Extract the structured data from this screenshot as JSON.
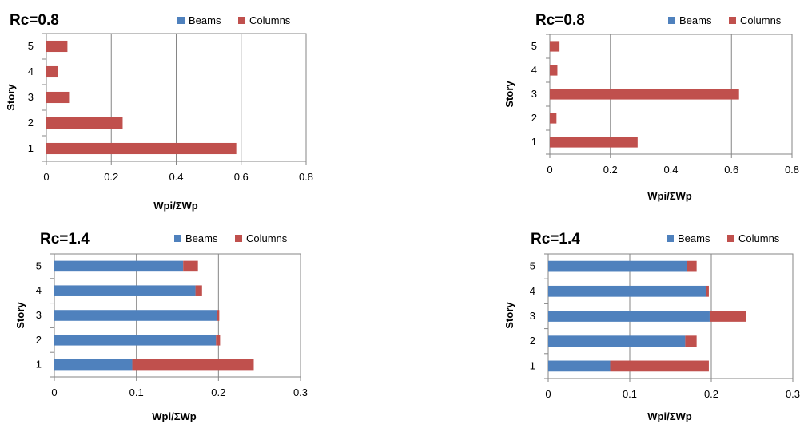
{
  "colors": {
    "beams": "#4f81bd",
    "columns": "#c0504d",
    "grid": "#868686",
    "axis": "#868686"
  },
  "chart_data": [
    {
      "type": "bar",
      "orientation": "horizontal",
      "stacked": true,
      "title": "Rc=0.8",
      "xlabel": "Wpi/ΣWp",
      "ylabel": "Story",
      "categories": [
        "1",
        "2",
        "3",
        "4",
        "5"
      ],
      "xlim": [
        0,
        0.8
      ],
      "xticks": [
        0,
        0.2,
        0.4,
        0.6,
        0.8
      ],
      "xtick_labels": [
        "0",
        "0.2",
        "0.4",
        "0.6",
        "0.8"
      ],
      "grid": true,
      "legend": "top",
      "series": [
        {
          "name": "Beams",
          "values": [
            0,
            0,
            0,
            0,
            0
          ]
        },
        {
          "name": "Columns",
          "values": [
            0.585,
            0.235,
            0.07,
            0.035,
            0.065
          ]
        }
      ]
    },
    {
      "type": "bar",
      "orientation": "horizontal",
      "stacked": true,
      "title": "Rc=0.8",
      "xlabel": "Wpi/ΣWp",
      "ylabel": "Story",
      "categories": [
        "1",
        "2",
        "3",
        "4",
        "5"
      ],
      "xlim": [
        0,
        0.8
      ],
      "xticks": [
        0,
        0.2,
        0.4,
        0.6,
        0.8
      ],
      "xtick_labels": [
        "0",
        "0.2",
        "0.4",
        "0.6",
        "0.8"
      ],
      "grid": true,
      "legend": "top",
      "series": [
        {
          "name": "Beams",
          "values": [
            0,
            0,
            0,
            0,
            0
          ]
        },
        {
          "name": "Columns",
          "values": [
            0.29,
            0.022,
            0.625,
            0.025,
            0.032
          ]
        }
      ]
    },
    {
      "type": "bar",
      "orientation": "horizontal",
      "stacked": true,
      "title": "Rc=1.4",
      "xlabel": "Wpi/ΣWp",
      "ylabel": "Story",
      "categories": [
        "1",
        "2",
        "3",
        "4",
        "5"
      ],
      "xlim": [
        0,
        0.3
      ],
      "xticks": [
        0,
        0.1,
        0.2,
        0.3
      ],
      "xtick_labels": [
        "0",
        "0.1",
        "0.2",
        "0.3"
      ],
      "grid": true,
      "legend": "top",
      "series": [
        {
          "name": "Beams",
          "values": [
            0.095,
            0.197,
            0.198,
            0.172,
            0.157
          ]
        },
        {
          "name": "Columns",
          "values": [
            0.148,
            0.005,
            0.003,
            0.008,
            0.018
          ]
        }
      ]
    },
    {
      "type": "bar",
      "orientation": "horizontal",
      "stacked": true,
      "title": "Rc=1.4",
      "xlabel": "Wpi/ΣWp",
      "ylabel": "Story",
      "categories": [
        "1",
        "2",
        "3",
        "4",
        "5"
      ],
      "xlim": [
        0,
        0.3
      ],
      "xticks": [
        0,
        0.1,
        0.2,
        0.3
      ],
      "xtick_labels": [
        "0",
        "0.1",
        "0.2",
        "0.3"
      ],
      "grid": true,
      "legend": "top",
      "series": [
        {
          "name": "Beams",
          "values": [
            0.076,
            0.168,
            0.198,
            0.194,
            0.17
          ]
        },
        {
          "name": "Columns",
          "values": [
            0.121,
            0.014,
            0.045,
            0.003,
            0.012
          ]
        }
      ]
    }
  ]
}
